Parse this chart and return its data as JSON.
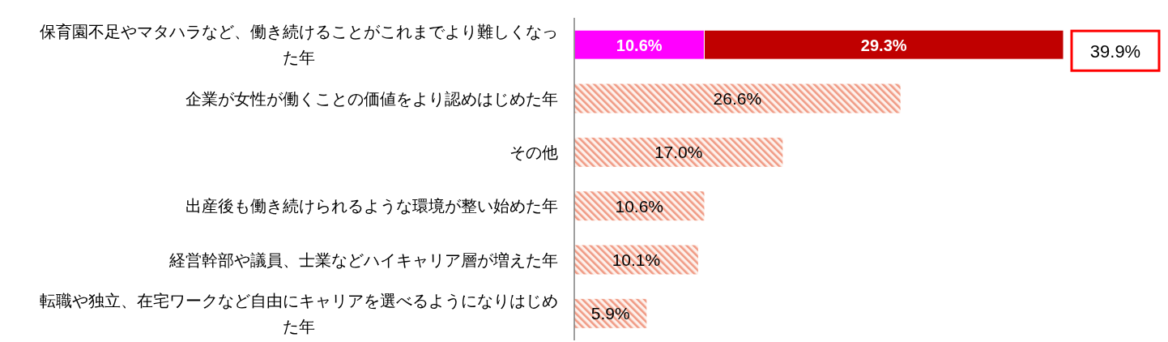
{
  "chart_data": {
    "type": "bar",
    "orientation": "horizontal",
    "stacked": true,
    "categories": [
      "保育園不足やマタハラなど、働き続けることがこれまでより難しくなった年",
      "企業が女性が働くことの価値をより認めはじめた年",
      "その他",
      "出産後も働き続けられるような環境が整い始めた年",
      "経営幹部や議員、士業などハイキャリア層が増えた年",
      "転職や独立、在宅ワークなど自由にキャリアを選べるようになりはじめた年"
    ],
    "series": [
      {
        "color": "#ff00ff",
        "values": [
          10.6,
          null,
          null,
          null,
          null,
          null
        ],
        "value_labels": [
          "10.6%",
          null,
          null,
          null,
          null,
          null
        ]
      },
      {
        "color": "#c00000",
        "values": [
          29.3,
          null,
          null,
          null,
          null,
          null
        ],
        "value_labels": [
          "29.3%",
          null,
          null,
          null,
          null,
          null
        ]
      },
      {
        "color": "#f09a84",
        "values": [
          null,
          26.6,
          17.0,
          10.6,
          10.1,
          5.9
        ],
        "value_labels": [
          null,
          "26.6%",
          "17.0%",
          "10.6%",
          "10.1%",
          "5.9%"
        ]
      }
    ],
    "totals": [
      "39.9%",
      null,
      null,
      null,
      null,
      null
    ]
  }
}
